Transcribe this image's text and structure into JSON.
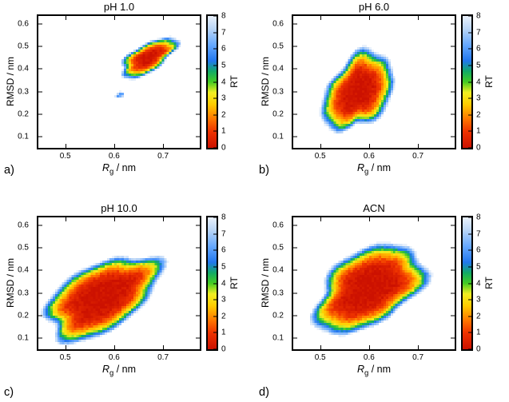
{
  "figure": {
    "background": "#ffffff",
    "axes": {
      "xlabel": {
        "base": "R",
        "sub": "g",
        "rest": " / nm"
      },
      "ylabel": "RMSD / nm",
      "xlim": [
        0.445,
        0.775
      ],
      "ylim": [
        0.05,
        0.635
      ],
      "xticks": [
        0.5,
        0.6,
        0.7
      ],
      "yticks": [
        0.1,
        0.2,
        0.3,
        0.4,
        0.5,
        0.6
      ]
    },
    "colorbar": {
      "label": "RT",
      "min": 0,
      "max": 8,
      "ticks": [
        0,
        1,
        2,
        3,
        4,
        5,
        6,
        7,
        8
      ],
      "colormap": [
        {
          "t": 0.0,
          "color": "#cc1100"
        },
        {
          "t": 0.125,
          "color": "#ee3300"
        },
        {
          "t": 0.22,
          "color": "#ff7700"
        },
        {
          "t": 0.33,
          "color": "#ffcc00"
        },
        {
          "t": 0.42,
          "color": "#f0ee22"
        },
        {
          "t": 0.5,
          "color": "#44cc22"
        },
        {
          "t": 0.58,
          "color": "#11aa66"
        },
        {
          "t": 0.66,
          "color": "#2277ee"
        },
        {
          "t": 0.78,
          "color": "#66a8ff"
        },
        {
          "t": 0.9,
          "color": "#b8d4f6"
        },
        {
          "t": 1.0,
          "color": "#e9f1fb"
        }
      ]
    }
  },
  "chart_data": [
    {
      "type": "heatmap",
      "panel_label": "a)",
      "title": "pH 1.0",
      "xlabel": "Rg / nm",
      "ylabel": "RMSD / nm",
      "xlim": [
        0.445,
        0.775
      ],
      "ylim": [
        0.05,
        0.635
      ],
      "color_scale": {
        "label": "RT",
        "range": [
          0,
          8
        ]
      },
      "basins": [
        {
          "rg": 0.67,
          "rmsd": 0.45,
          "f0": 0,
          "a": 0.22,
          "b": 0.1,
          "angle": 40,
          "p": 3,
          "seed": 1,
          "note": "compact free-energy minimum near Rg 0.67 nm, RMSD 0.45 nm; spans ~0.60-0.73 nm x ~0.33-0.52 nm"
        },
        {
          "rg": 0.612,
          "rmsd": 0.285,
          "f0": 5.5,
          "a": 0.055,
          "b": 0.035,
          "angle": 30,
          "p": 2,
          "seed": 2,
          "note": "shallow satellite region (5-8 RT) near Rg 0.61 nm, RMSD 0.29 nm"
        }
      ]
    },
    {
      "type": "heatmap",
      "panel_label": "b)",
      "title": "pH 6.0",
      "xlabel": "Rg / nm",
      "ylabel": "RMSD / nm",
      "xlim": [
        0.445,
        0.775
      ],
      "ylim": [
        0.05,
        0.635
      ],
      "color_scale": {
        "label": "RT",
        "range": [
          0,
          8
        ]
      },
      "basins": [
        {
          "rg": 0.578,
          "rmsd": 0.3,
          "f0": 0,
          "a": 0.33,
          "b": 0.2,
          "angle": 65,
          "p": 3.5,
          "seed": 3,
          "note": "broad basin near Rg 0.58 nm, RMSD 0.30 nm; spans ~0.50-0.66 nm x ~0.12-0.47 nm"
        }
      ]
    },
    {
      "type": "heatmap",
      "panel_label": "c)",
      "title": "pH 10.0",
      "xlabel": "Rg / nm",
      "ylabel": "RMSD / nm",
      "xlim": [
        0.445,
        0.775
      ],
      "ylim": [
        0.05,
        0.635
      ],
      "color_scale": {
        "label": "RT",
        "range": [
          0,
          8
        ]
      },
      "basins": [
        {
          "rg": 0.575,
          "rmsd": 0.28,
          "f0": 0,
          "a": 0.43,
          "b": 0.24,
          "angle": 40,
          "p": 4,
          "seed": 4,
          "note": "very broad basin near Rg 0.58 nm, RMSD 0.28 nm; spans ~0.47-0.70 nm x ~0.08-0.50 nm"
        }
      ]
    },
    {
      "type": "heatmap",
      "panel_label": "d)",
      "title": "ACN",
      "xlabel": "Rg / nm",
      "ylabel": "RMSD / nm",
      "xlim": [
        0.445,
        0.775
      ],
      "ylim": [
        0.05,
        0.635
      ],
      "color_scale": {
        "label": "RT",
        "range": [
          0,
          8
        ]
      },
      "basins": [
        {
          "rg": 0.6,
          "rmsd": 0.32,
          "f0": 0,
          "a": 0.42,
          "b": 0.26,
          "angle": 45,
          "p": 4,
          "seed": 5,
          "note": "very broad basin near Rg 0.60 nm, RMSD 0.32 nm; spans ~0.48-0.71 nm x ~0.10-0.52 nm"
        }
      ]
    }
  ]
}
